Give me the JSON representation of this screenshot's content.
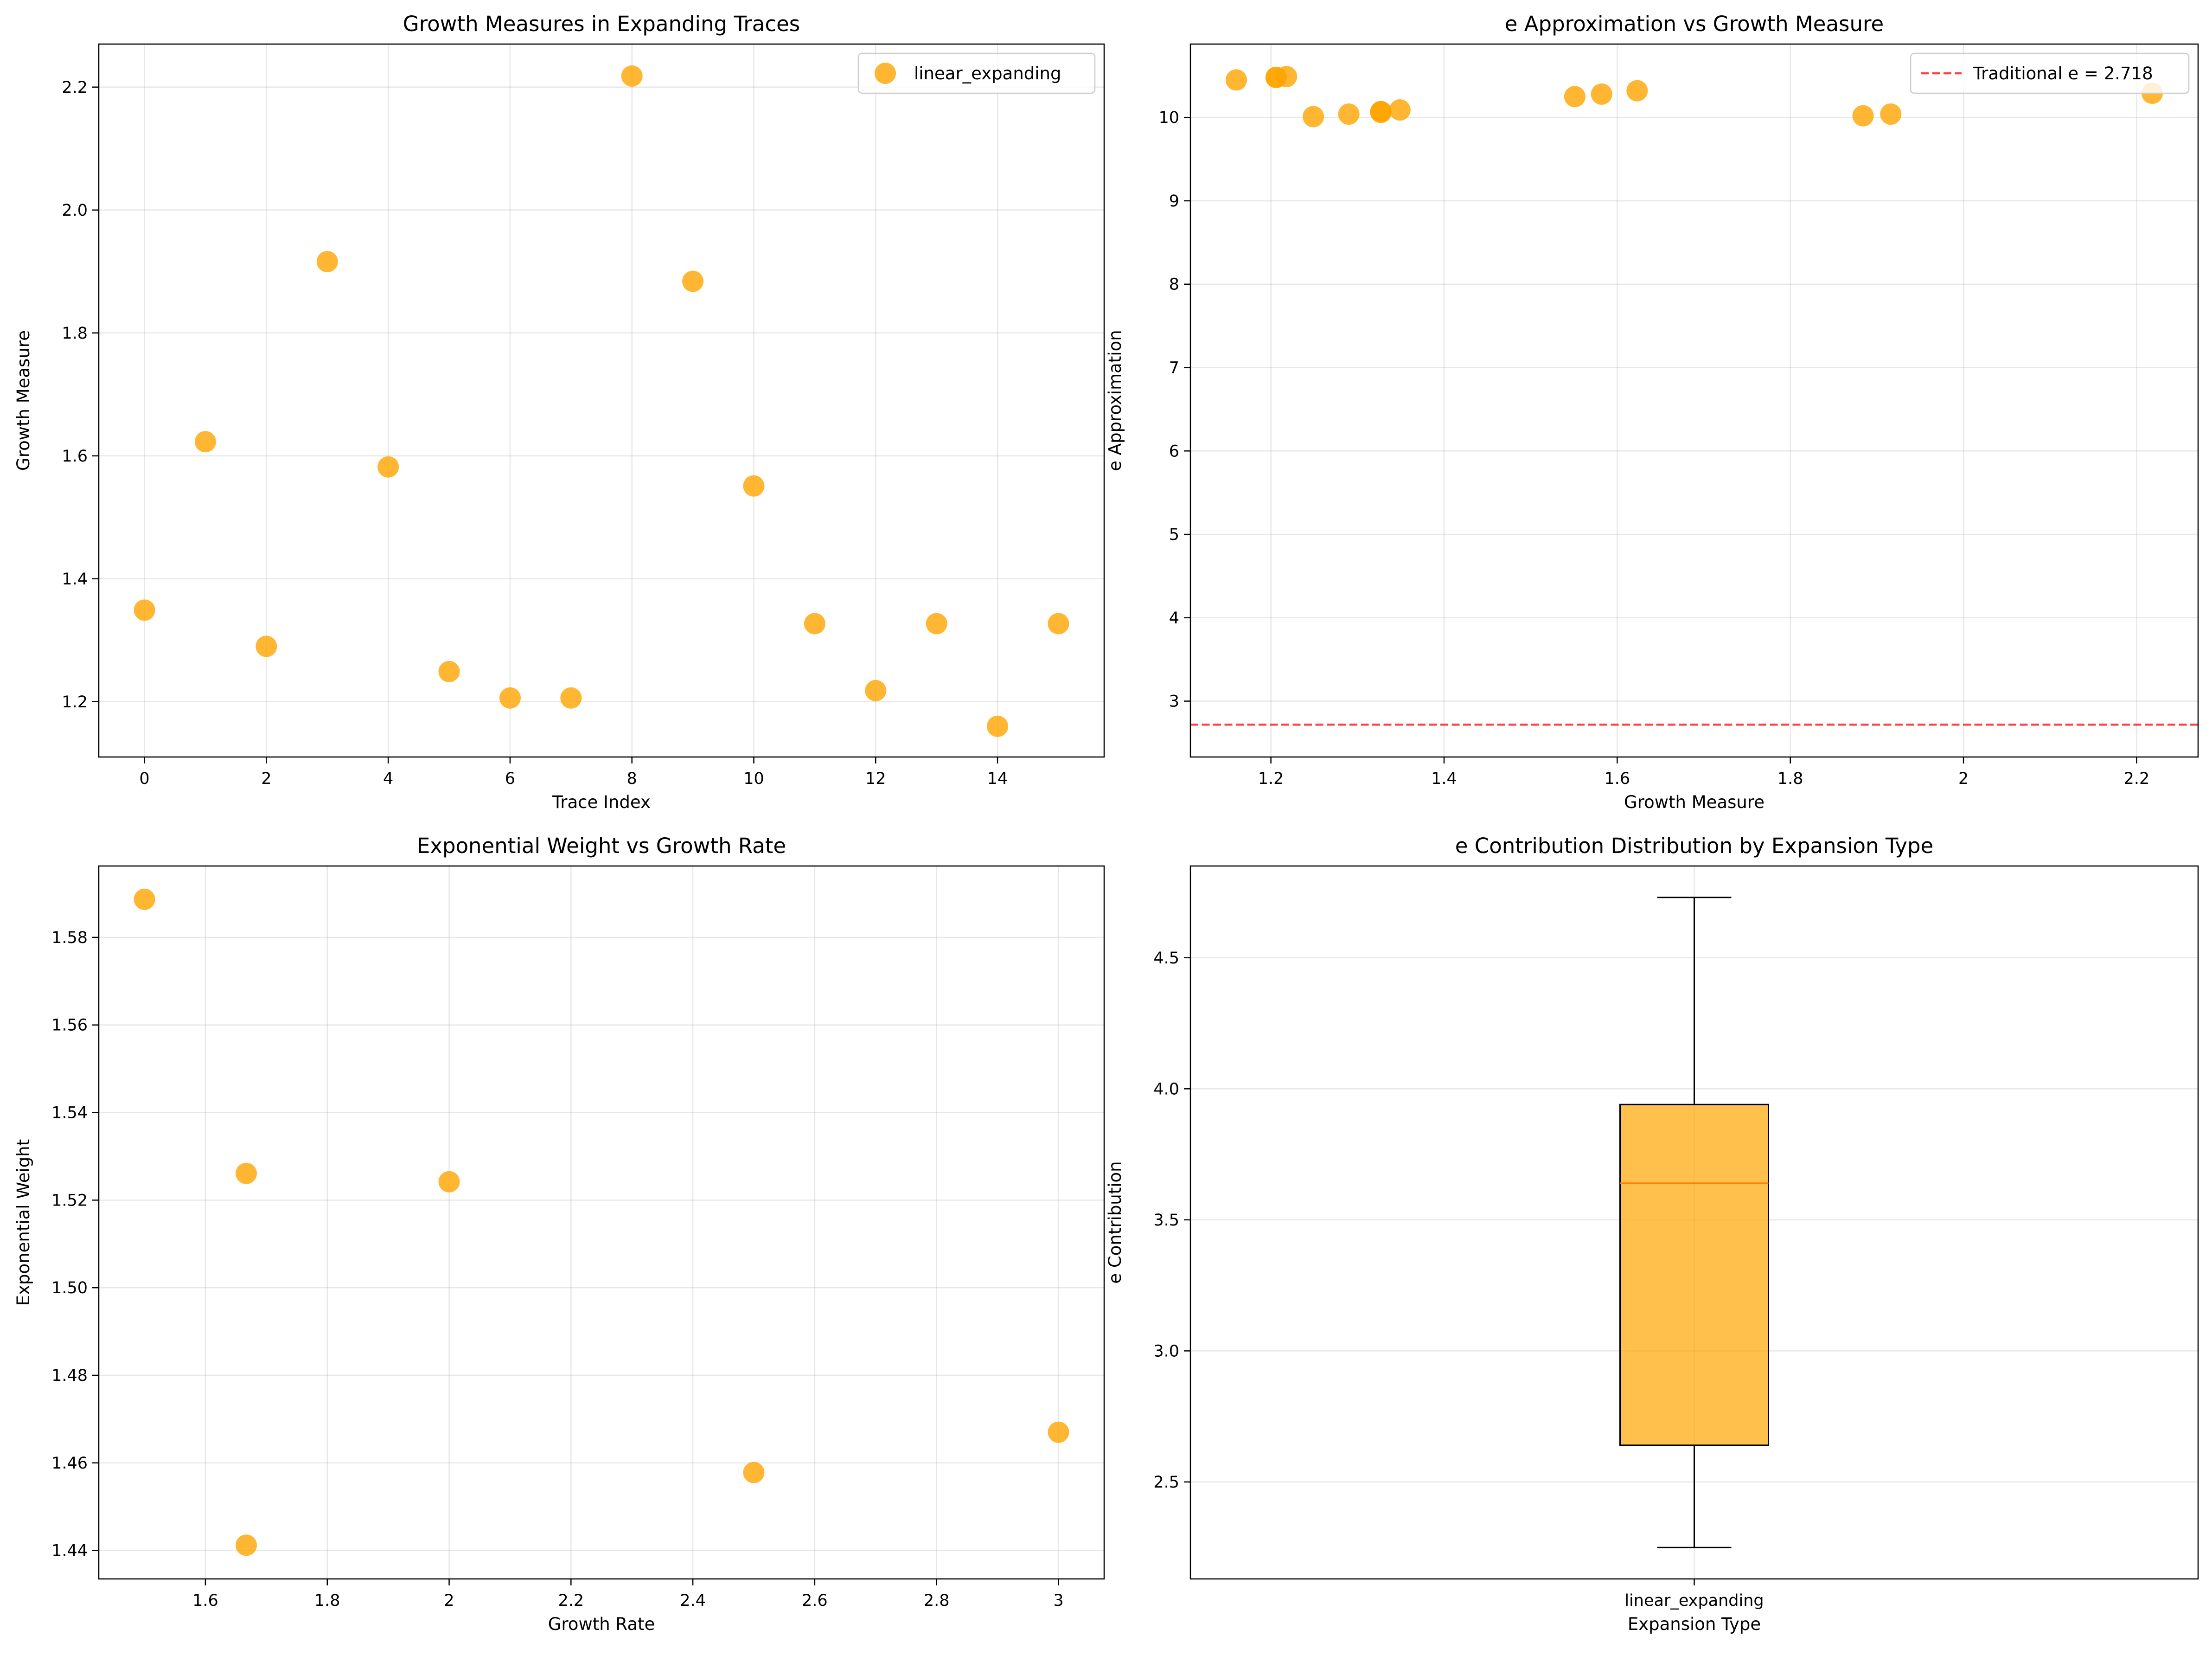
{
  "chart_data": [
    {
      "type": "scatter",
      "title": "Growth Measures in Expanding Traces",
      "xlabel": "Trace Index",
      "ylabel": "Growth Measure",
      "xlim": [
        -0.75,
        15.75
      ],
      "ylim": [
        1.11,
        2.27
      ],
      "xticks": [
        0,
        2,
        4,
        6,
        8,
        10,
        12,
        14
      ],
      "yticks": [
        1.2,
        1.4,
        1.6,
        1.8,
        2.0,
        2.2
      ],
      "grid": true,
      "legend": "top-right",
      "color": "#FFA500",
      "series": [
        {
          "name": "linear_expanding",
          "x": [
            0,
            1,
            2,
            3,
            4,
            5,
            6,
            7,
            8,
            9,
            10,
            11,
            12,
            13,
            14,
            15
          ],
          "y": [
            1.349,
            1.623,
            1.29,
            1.916,
            1.582,
            1.249,
            1.206,
            1.206,
            2.218,
            1.884,
            1.551,
            1.327,
            1.218,
            1.327,
            1.16,
            1.327
          ]
        }
      ]
    },
    {
      "type": "scatter",
      "title": "e Approximation vs Growth Measure",
      "xlabel": "Growth Measure",
      "ylabel": "e Approximation",
      "xlim": [
        1.107,
        2.271
      ],
      "ylim": [
        2.33,
        10.88
      ],
      "xticks": [
        1.2,
        1.4,
        1.6,
        1.8,
        2.0,
        2.2
      ],
      "yticks": [
        3,
        4,
        5,
        6,
        7,
        8,
        9,
        10
      ],
      "grid": true,
      "legend": "top-right",
      "color": "#FFA500",
      "reference_line": {
        "y": 2.718,
        "label": "Traditional e = 2.718",
        "color": "#FF0000",
        "style": "dashed"
      },
      "series": [
        {
          "x": [
            1.16,
            1.206,
            1.206,
            1.218,
            1.249,
            1.29,
            1.327,
            1.327,
            1.327,
            1.349,
            1.551,
            1.582,
            1.623,
            1.884,
            1.916,
            2.218
          ],
          "y": [
            10.45,
            10.48,
            10.48,
            10.49,
            10.01,
            10.04,
            10.06,
            10.07,
            10.07,
            10.09,
            10.25,
            10.28,
            10.32,
            10.02,
            10.04,
            10.29
          ]
        }
      ]
    },
    {
      "type": "scatter",
      "title": "Exponential Weight vs Growth Rate",
      "xlabel": "Growth Rate",
      "ylabel": "Exponential Weight",
      "xlim": [
        1.425,
        3.075
      ],
      "ylim": [
        1.4335,
        1.5963
      ],
      "xticks": [
        1.6,
        1.8,
        2.0,
        2.2,
        2.4,
        2.6,
        2.8,
        3.0
      ],
      "yticks": [
        1.44,
        1.46,
        1.48,
        1.5,
        1.52,
        1.54,
        1.56,
        1.58
      ],
      "grid": true,
      "color": "#FFA500",
      "series": [
        {
          "x": [
            1.5,
            1.667,
            1.667,
            2.0,
            2.5,
            3.0
          ],
          "y": [
            1.5887,
            1.5261,
            1.4412,
            1.5242,
            1.4578,
            1.467
          ]
        }
      ]
    },
    {
      "type": "box",
      "title": "e Contribution Distribution by Expansion Type",
      "xlabel": "Expansion Type",
      "ylabel": "e Contribution",
      "ylim": [
        2.13,
        4.85
      ],
      "yticks": [
        2.5,
        3.0,
        3.5,
        4.0,
        4.5
      ],
      "grid": true,
      "color": "#FFA500",
      "median_color": "#FF7F0E",
      "categories": [
        "linear_expanding"
      ],
      "boxes": [
        {
          "whisker_low": 2.25,
          "q1": 2.64,
          "median": 3.64,
          "q3": 3.94,
          "whisker_high": 4.73
        }
      ]
    }
  ]
}
